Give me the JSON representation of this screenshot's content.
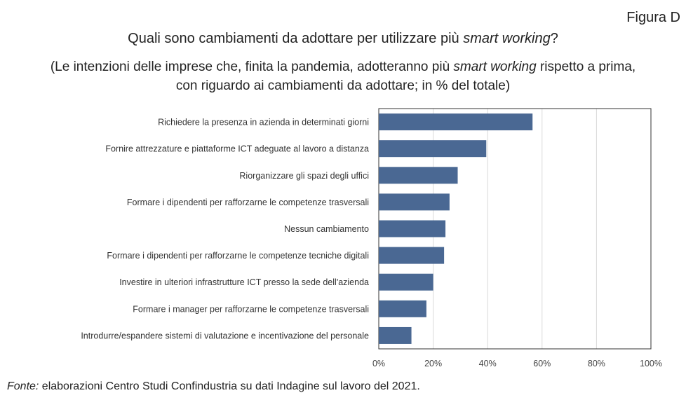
{
  "figure_label": "Figura D",
  "title_pre": "Quali sono cambiamenti da adottare per utilizzare più ",
  "title_em": "smart working",
  "title_post": "?",
  "subtitle_line1_pre": "(Le intenzioni delle imprese che, finita la pandemia, adotteranno più ",
  "subtitle_line1_em": "smart working",
  "subtitle_line1_post": " rispetto a prima,",
  "subtitle_line2": "con riguardo ai cambiamenti da adottare; in % del totale)",
  "source_label": "Fonte:",
  "source_text": " elaborazioni Centro Studi Confindustria su dati Indagine sul lavoro del 2021.",
  "chart_data": {
    "type": "bar",
    "orientation": "horizontal",
    "categories": [
      "Richiedere la presenza in azienda in determinati giorni",
      "Fornire attrezzature e piattaforme ICT adeguate al lavoro a distanza",
      "Riorganizzare gli spazi degli uffici",
      "Formare i dipendenti per rafforzarne le competenze trasversali",
      "Nessun cambiamento",
      "Formare i dipendenti per rafforzarne le competenze tecniche digitali",
      "Investire in ulteriori infrastrutture ICT presso la sede dell'azienda",
      "Formare i manager per rafforzarne le competenze trasversali",
      "Introdurre/espandere sistemi di valutazione e incentivazione del personale"
    ],
    "values": [
      56.5,
      39.5,
      29,
      26,
      24.5,
      24,
      20,
      17.5,
      12
    ],
    "xlim": [
      0,
      100
    ],
    "xticks": [
      0,
      20,
      40,
      60,
      80,
      100
    ],
    "xtick_labels": [
      "0%",
      "20%",
      "40%",
      "60%",
      "80%",
      "100%"
    ],
    "bar_color": "#4a6893",
    "grid_color": "#d9d9d9",
    "xlabel": "",
    "ylabel": ""
  }
}
